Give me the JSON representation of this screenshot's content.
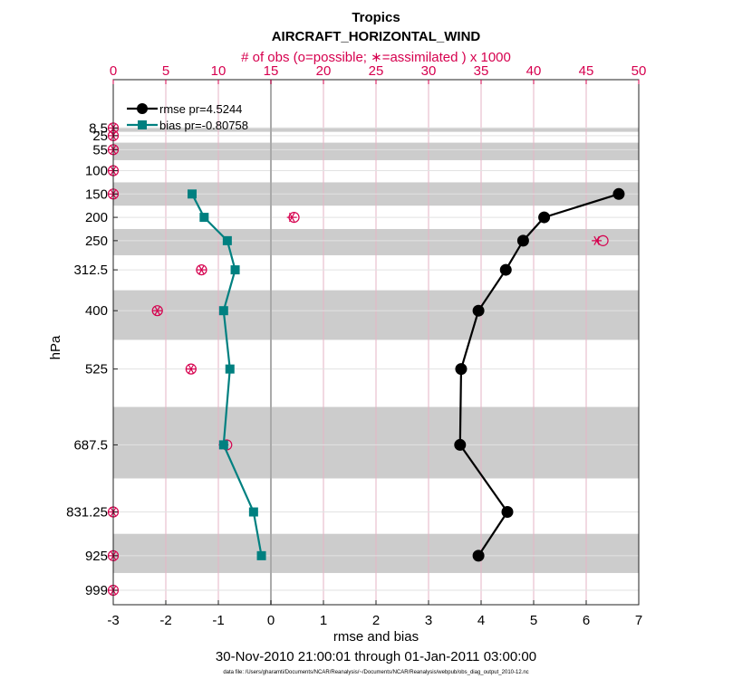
{
  "chart_data": {
    "type": "line",
    "title": "Tropics",
    "subtitle": "AIRCRAFT_HORIZONTAL_WIND",
    "top_axis_label": "# of obs (o=possible; ∗=assimilated ) x 1000",
    "xlabel": "rmse and bias",
    "ylabel": "hPa",
    "date_range": "30-Nov-2010 21:00:01 through 01-Jan-2011 03:00:00",
    "footnote": "data file: /Users/gharamti/Documents/NCAR/Reanalysis/~/Documents/NCAR/Reanalysis/webpub/obs_diag_output_2010-12.nc",
    "xlim": [
      -3,
      7
    ],
    "xticks": [
      "-3",
      "-2",
      "-1",
      "0",
      "1",
      "2",
      "3",
      "4",
      "5",
      "6",
      "7"
    ],
    "top_xlim": [
      0,
      50
    ],
    "top_xticks": [
      "0",
      "5",
      "10",
      "15",
      "20",
      "25",
      "30",
      "35",
      "40",
      "45",
      "50"
    ],
    "yticks": [
      "8.5",
      "25",
      "55",
      "100",
      "150",
      "200",
      "250",
      "312.5",
      "400",
      "525",
      "687.5",
      "831.25",
      "925",
      "999"
    ],
    "legend_position": "top-left",
    "grid": true,
    "colors": {
      "rmse": "#000000",
      "bias": "#008080",
      "obs": "#d6004e",
      "band": "#cccccc",
      "zero_line": "#aaaaaa"
    },
    "series": [
      {
        "name": "rmse pr=4.5244",
        "marker": "circle",
        "points": [
          {
            "level": "150",
            "value": 6.62
          },
          {
            "level": "200",
            "value": 5.2
          },
          {
            "level": "250",
            "value": 4.8
          },
          {
            "level": "312.5",
            "value": 4.47
          },
          {
            "level": "400",
            "value": 3.95
          },
          {
            "level": "525",
            "value": 3.62
          },
          {
            "level": "687.5",
            "value": 3.6
          },
          {
            "level": "831.25",
            "value": 4.5
          },
          {
            "level": "925",
            "value": 3.95
          }
        ]
      },
      {
        "name": "bias pr=-0.80758",
        "marker": "square",
        "points": [
          {
            "level": "150",
            "value": -1.5
          },
          {
            "level": "200",
            "value": -1.27
          },
          {
            "level": "250",
            "value": -0.83
          },
          {
            "level": "312.5",
            "value": -0.68
          },
          {
            "level": "400",
            "value": -0.9
          },
          {
            "level": "525",
            "value": -0.78
          },
          {
            "level": "687.5",
            "value": -0.9
          },
          {
            "level": "831.25",
            "value": -0.33
          },
          {
            "level": "925",
            "value": -0.18
          }
        ]
      }
    ],
    "obs_counts": [
      {
        "level": "8.5",
        "possible": 0,
        "assimilated": 0
      },
      {
        "level": "25",
        "possible": 0,
        "assimilated": 0
      },
      {
        "level": "55",
        "possible": 0,
        "assimilated": 0
      },
      {
        "level": "100",
        "possible": 0,
        "assimilated": 0
      },
      {
        "level": "150",
        "possible": 0,
        "assimilated": 0
      },
      {
        "level": "200",
        "possible": 17.2,
        "assimilated": 17.0
      },
      {
        "level": "250",
        "possible": 46.6,
        "assimilated": 46.0
      },
      {
        "level": "312.5",
        "possible": 8.4,
        "assimilated": 8.4
      },
      {
        "level": "400",
        "possible": 4.2,
        "assimilated": 4.2
      },
      {
        "level": "525",
        "possible": 7.4,
        "assimilated": 7.4
      },
      {
        "level": "687.5",
        "possible": 10.8,
        "assimilated": 10.5
      },
      {
        "level": "831.25",
        "possible": 0,
        "assimilated": 0
      },
      {
        "level": "925",
        "possible": 0,
        "assimilated": 0
      },
      {
        "level": "999",
        "possible": 0,
        "assimilated": 0
      }
    ]
  }
}
